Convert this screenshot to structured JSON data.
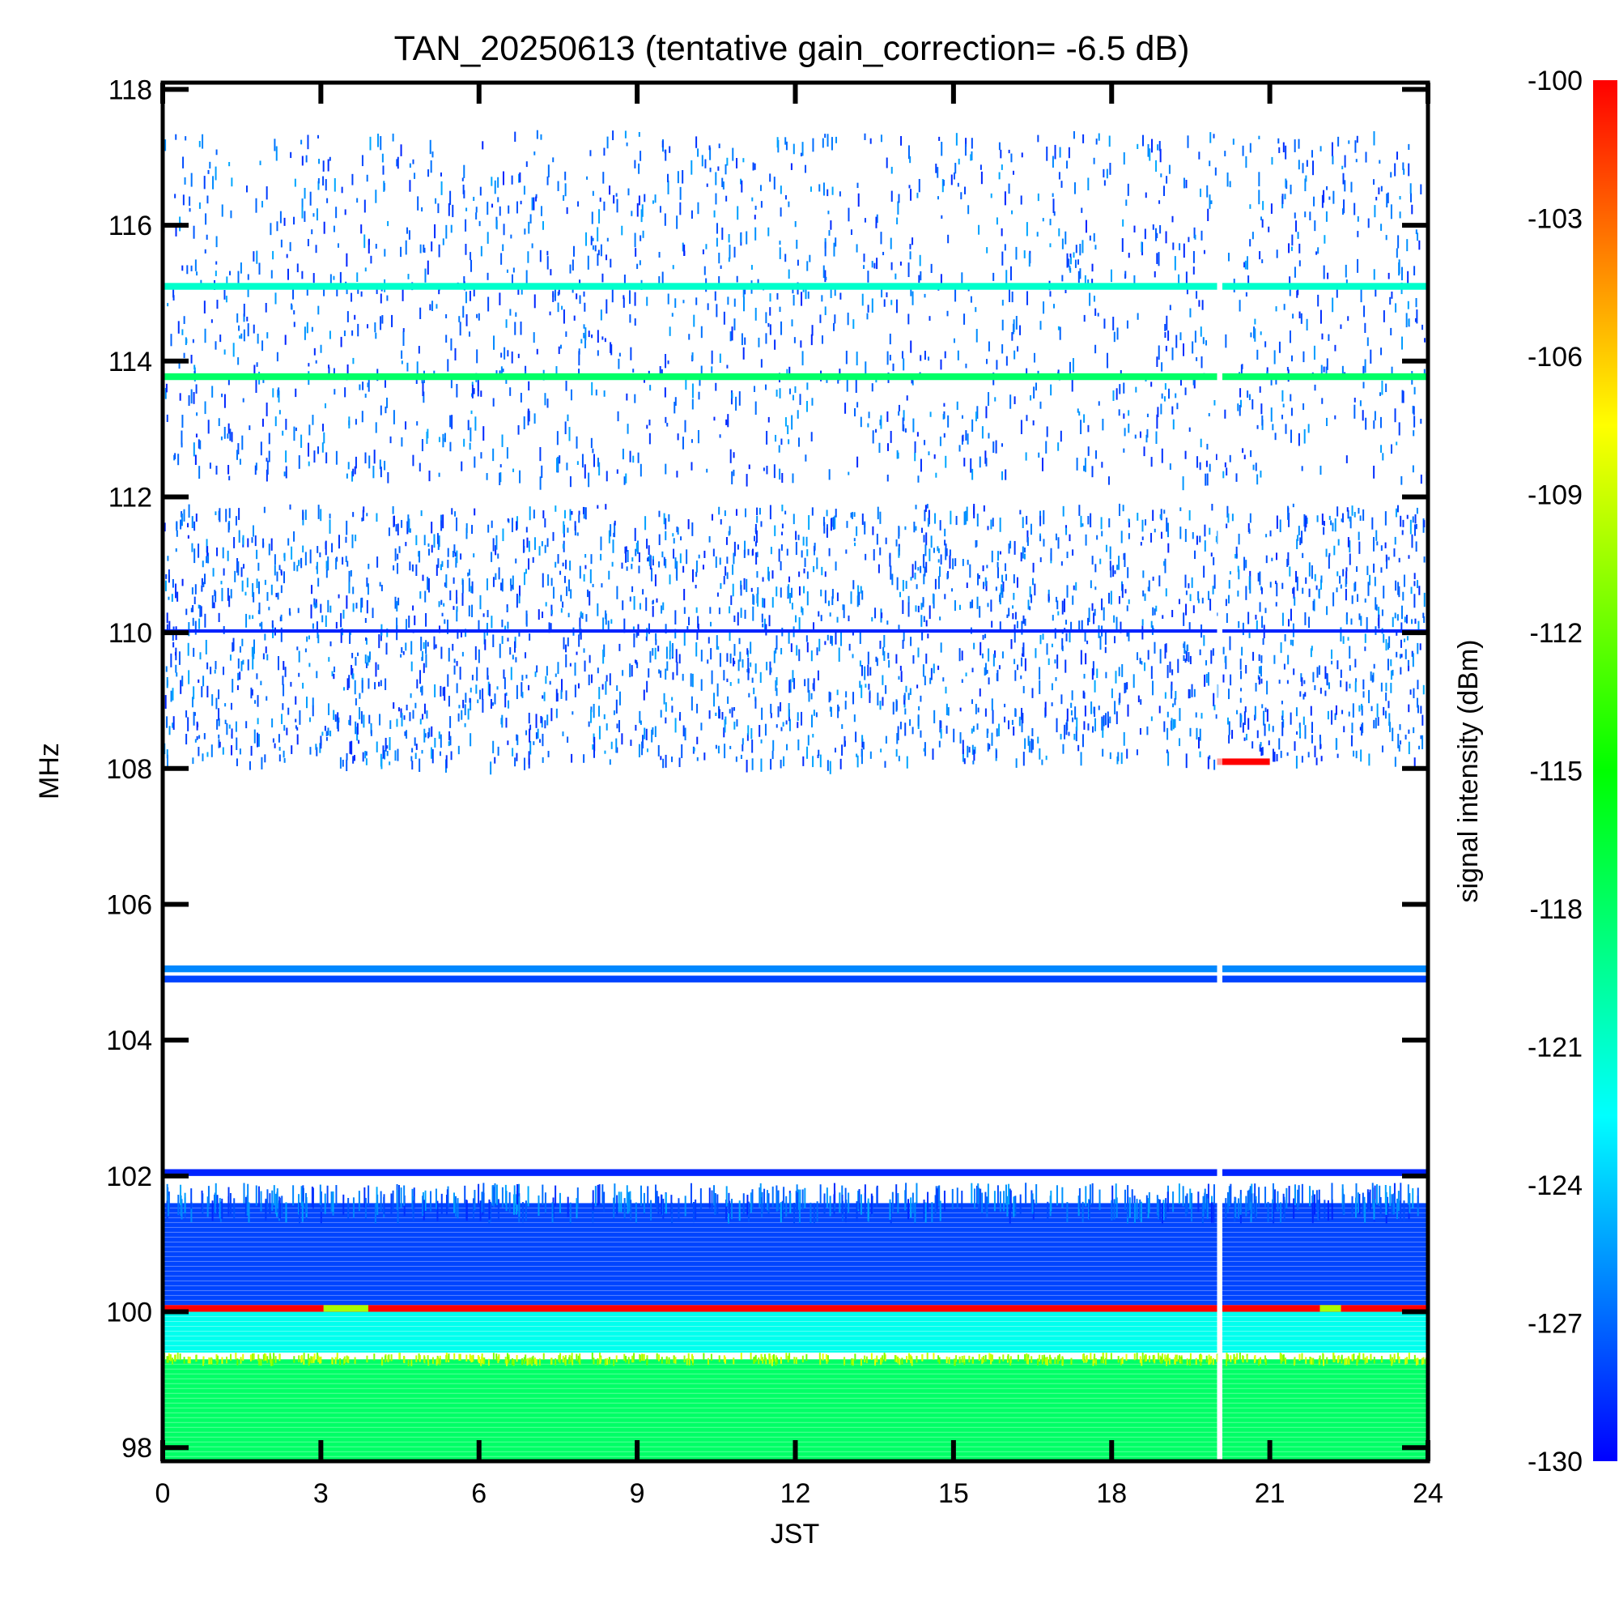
{
  "chart_data": {
    "type": "heatmap",
    "title": "TAN_20250613 (tentative gain_correction= -6.5 dB)",
    "xlabel": "JST",
    "ylabel": "MHz",
    "colorbar_label": "signal intensity (dBm)",
    "x_range": [
      0,
      24
    ],
    "y_range": [
      97.8,
      118.1
    ],
    "x_ticks": [
      0,
      3,
      6,
      9,
      12,
      15,
      18,
      21,
      24
    ],
    "x_tick_labels": [
      "0",
      "3",
      "6",
      "9",
      "12",
      "15",
      "18",
      "21",
      "24"
    ],
    "y_ticks": [
      98,
      100,
      102,
      104,
      106,
      108,
      110,
      112,
      114,
      116,
      118
    ],
    "y_tick_labels": [
      "98",
      "100",
      "102",
      "104",
      "106",
      "108",
      "110",
      "112",
      "114",
      "116",
      "118"
    ],
    "color_range": [
      -130,
      -100
    ],
    "colorbar_ticks": [
      -100,
      -103,
      -106,
      -109,
      -112,
      -115,
      -118,
      -121,
      -124,
      -127,
      -130
    ],
    "colorbar_tick_labels": [
      "-100",
      "-103",
      "-106",
      "-109",
      "-112",
      "-115",
      "-118",
      "-121",
      "-124",
      "-127",
      "-130"
    ],
    "colormap": [
      "#0000ff",
      "#0080ff",
      "#00ffff",
      "#00ff80",
      "#00ff00",
      "#80ff00",
      "#ffff00",
      "#ff8000",
      "#ff0000"
    ],
    "data_gap_jst": [
      20.0,
      20.1
    ],
    "bands": [
      {
        "f_from": 97.8,
        "f_to": 99.3,
        "intensity_dbm": -118,
        "kind": "continuous"
      },
      {
        "f_from": 99.3,
        "f_to": 99.4,
        "intensity_dbm": -112,
        "kind": "speckled"
      },
      {
        "f_from": 99.4,
        "f_to": 100.0,
        "intensity_dbm": -122,
        "kind": "continuous"
      },
      {
        "f_from": 100.0,
        "f_to": 100.1,
        "intensity_dbm": -100,
        "kind": "continuous"
      },
      {
        "f_from": 100.1,
        "f_to": 101.6,
        "intensity_dbm": -128,
        "kind": "continuous"
      },
      {
        "f_from": 101.6,
        "f_to": 101.9,
        "intensity_dbm": -129,
        "kind": "speckled"
      },
      {
        "f_from": 102.0,
        "f_to": 102.1,
        "intensity_dbm": -129,
        "kind": "line"
      },
      {
        "f_from": 104.85,
        "f_to": 104.95,
        "intensity_dbm": -128,
        "kind": "line"
      },
      {
        "f_from": 105.0,
        "f_to": 105.1,
        "intensity_dbm": -126,
        "kind": "line"
      },
      {
        "f_from": 108.1,
        "f_to": 111.9,
        "intensity_dbm": -129,
        "kind": "noise"
      },
      {
        "f_from": 110.0,
        "f_to": 110.05,
        "intensity_dbm": -129,
        "kind": "line"
      },
      {
        "f_from": 112.3,
        "f_to": 117.4,
        "intensity_dbm": -129,
        "kind": "sparse_noise"
      },
      {
        "f_from": 113.72,
        "f_to": 113.82,
        "intensity_dbm": -118,
        "kind": "line"
      },
      {
        "f_from": 115.05,
        "f_to": 115.15,
        "intensity_dbm": -121,
        "kind": "line"
      }
    ],
    "events": [
      {
        "jst_from": 3.05,
        "jst_to": 3.9,
        "f_mhz": 100.05,
        "intensity_dbm": -110
      },
      {
        "jst_from": 21.95,
        "jst_to": 22.35,
        "f_mhz": 100.05,
        "intensity_dbm": -110
      },
      {
        "jst_from": 20.0,
        "jst_to": 21.0,
        "f_mhz": 108.1,
        "intensity_dbm": -100
      }
    ]
  }
}
